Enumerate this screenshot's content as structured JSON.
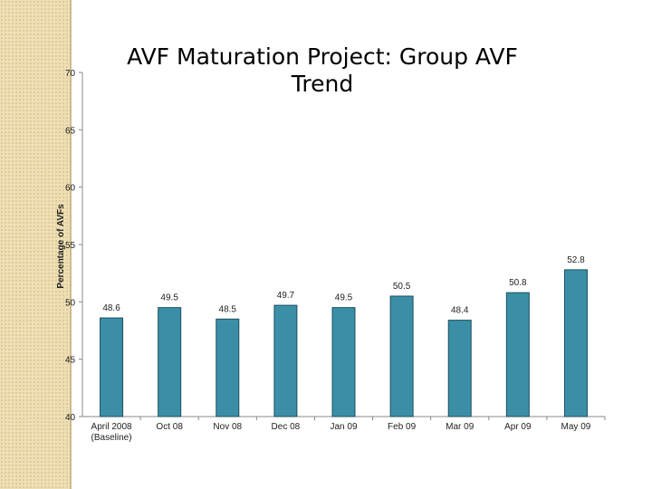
{
  "chart_data": {
    "type": "bar",
    "title_lines": [
      "AVF Maturation Project: Group AVF",
      "Trend"
    ],
    "xlabel": "",
    "ylabel": "Percentage of AVFs",
    "ylim": [
      40,
      70
    ],
    "yticks": [
      40,
      45,
      50,
      55,
      60,
      65,
      70
    ],
    "grid": false,
    "categories": [
      [
        "April 2008",
        "(Baseline)"
      ],
      [
        "Oct 08"
      ],
      [
        "Nov 08"
      ],
      [
        "Dec 08"
      ],
      [
        "Jan 09"
      ],
      [
        "Feb 09"
      ],
      [
        "Mar 09"
      ],
      [
        "Apr 09"
      ],
      [
        "May 09"
      ]
    ],
    "values": [
      48.6,
      49.5,
      48.5,
      49.7,
      49.5,
      50.5,
      48.4,
      50.8,
      52.8
    ],
    "data_labels": [
      "48.6",
      "49.5",
      "48.5",
      "49.7",
      "49.5",
      "50.5",
      "48.4",
      "50.8",
      "52.8"
    ],
    "colors": {
      "bar": "#3a8fa6",
      "bar_stroke": "#1f4f5e",
      "axis": "#888888",
      "sidebar": "#eedfb6"
    }
  }
}
